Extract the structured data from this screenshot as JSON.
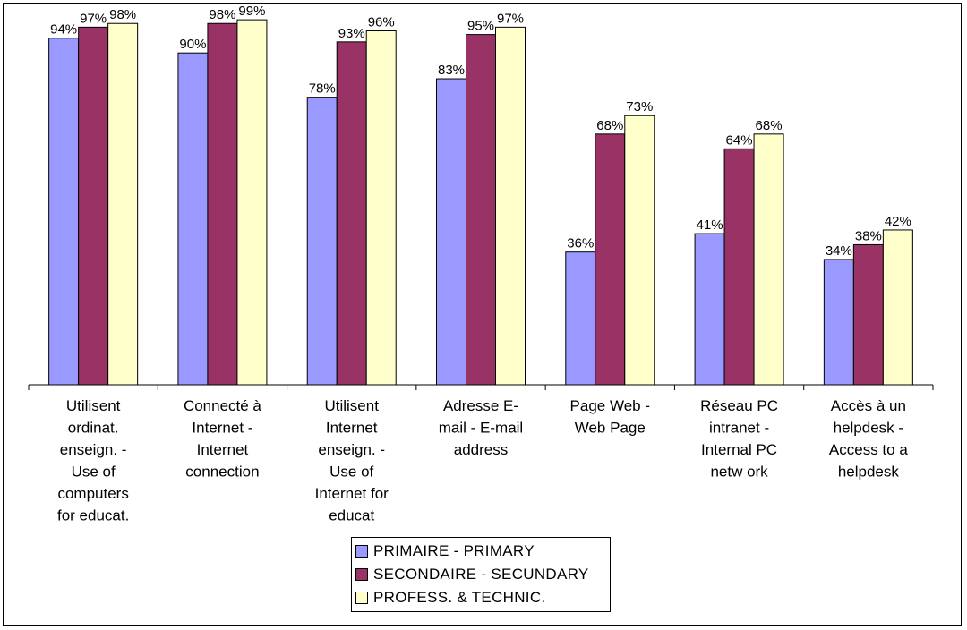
{
  "chart_data": {
    "type": "bar",
    "categories": [
      [
        "Utilisent",
        "ordinat.",
        "enseign. -",
        "Use of",
        "computers",
        "for educat."
      ],
      [
        "Connecté à",
        "Internet -",
        "Internet",
        "connection"
      ],
      [
        "Utilisent",
        "Internet",
        "enseign. -",
        "Use of",
        "Internet for",
        "educat"
      ],
      [
        "Adresse E-",
        "mail - E-mail",
        "address"
      ],
      [
        "Page Web  -",
        "Web Page"
      ],
      [
        "Réseau PC",
        "intranet -",
        "Internal PC",
        "netw ork"
      ],
      [
        "Accès à un",
        "helpdesk -",
        "Access to a",
        "helpdesk"
      ]
    ],
    "series": [
      {
        "name": "PRIMAIRE - PRIMARY",
        "color": "#9999ff",
        "values": [
          94,
          90,
          78,
          83,
          36,
          41,
          34
        ]
      },
      {
        "name": "SECONDAIRE - SECUNDARY",
        "color": "#993366",
        "values": [
          97,
          98,
          93,
          95,
          68,
          64,
          38
        ]
      },
      {
        "name": "PROFESS. & TECHNIC.",
        "color": "#ffffcc",
        "values": [
          98,
          99,
          96,
          97,
          73,
          68,
          42
        ]
      }
    ],
    "value_suffix": "%",
    "ylim": [
      0,
      100
    ],
    "grid": false,
    "legend_position": "bottom"
  }
}
